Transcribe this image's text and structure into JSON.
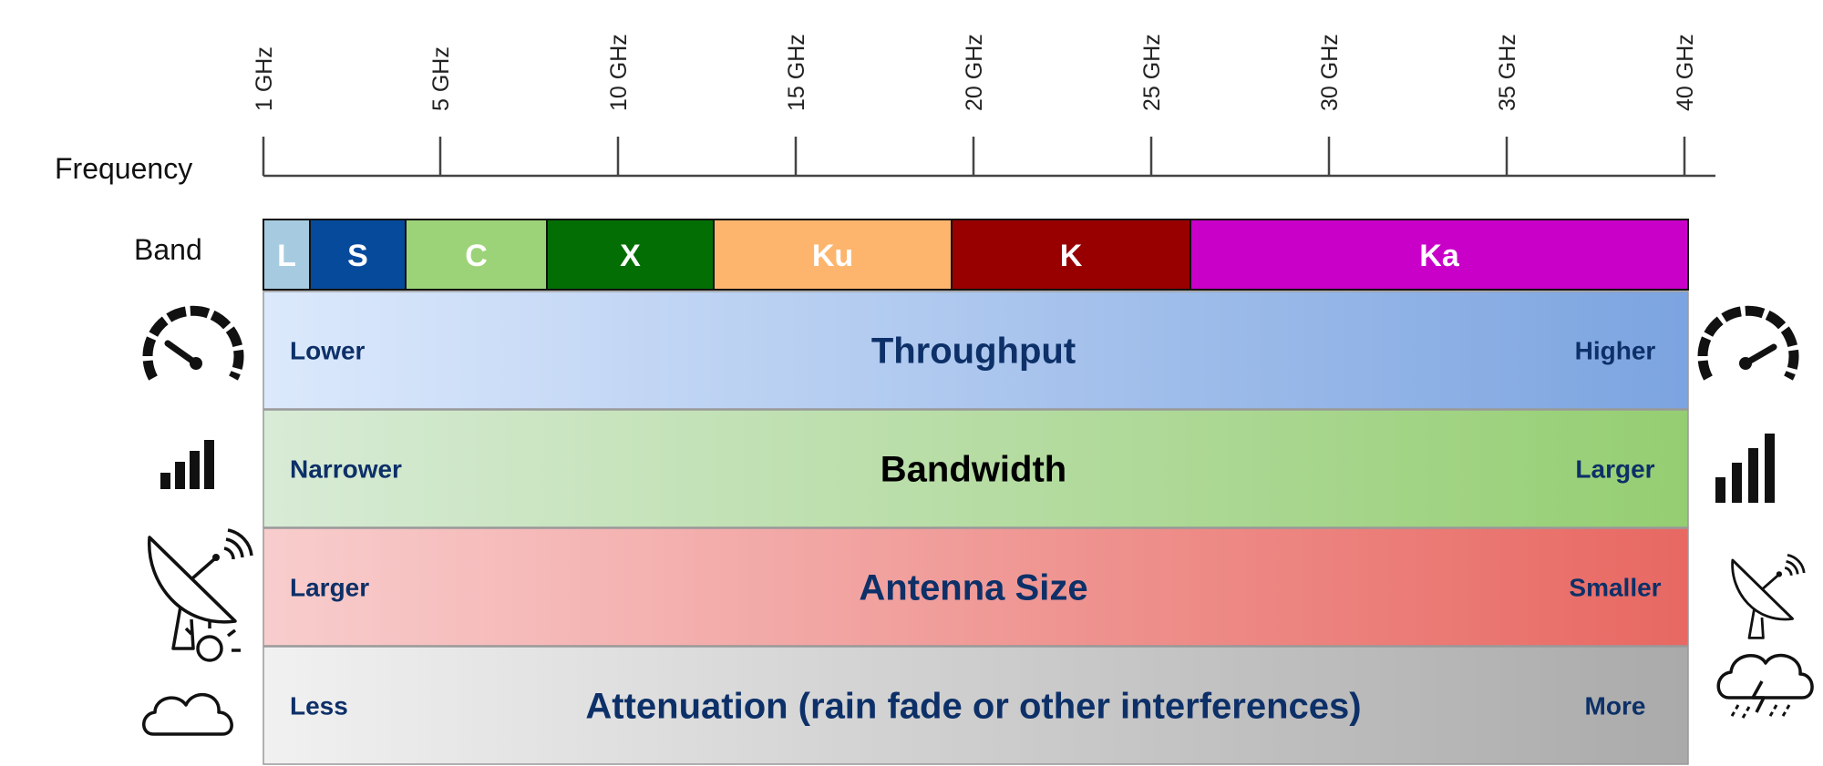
{
  "axis": {
    "label": "Frequency",
    "ticks": [
      "1 GHz",
      "5 GHz",
      "10 GHz",
      "15 GHz",
      "20 GHz",
      "25 GHz",
      "30 GHz",
      "35 GHz",
      "40 GHz"
    ]
  },
  "band_row": {
    "label": "Band",
    "bands": [
      {
        "name": "L",
        "color": "#a6cbe0"
      },
      {
        "name": "S",
        "color": "#064a9c"
      },
      {
        "name": "C",
        "color": "#9cd378"
      },
      {
        "name": "X",
        "color": "#036e04"
      },
      {
        "name": "Ku",
        "color": "#fdb56d"
      },
      {
        "name": "K",
        "color": "#980000"
      },
      {
        "name": "Ka",
        "color": "#c800c8"
      }
    ]
  },
  "bars": [
    {
      "title": "Throughput",
      "left": "Lower",
      "right": "Higher",
      "gradient": [
        "#dce9fc",
        "#7ca4e0"
      ],
      "text_color": "#0d3068",
      "title_color": "#0d3068",
      "left_icon": "speedometer-icon",
      "right_icon": "speedometer-icon"
    },
    {
      "title": "Bandwidth",
      "left": "Narrower",
      "right": "Larger",
      "gradient": [
        "#d8ebd6",
        "#95ce72"
      ],
      "text_color": "#0d3068",
      "title_color": "#000000",
      "left_icon": "signal-strength-icon",
      "right_icon": "signal-strength-icon"
    },
    {
      "title": "Antenna Size",
      "left": "Larger",
      "right": "Smaller",
      "gradient": [
        "#f8cdcd",
        "#e86862"
      ],
      "text_color": "#0d3068",
      "title_color": "#0d3068",
      "left_icon": "satellite-dish-icon",
      "right_icon": "satellite-dish-icon"
    },
    {
      "title": "Attenuation (rain fade or other interferences)",
      "left": "Less",
      "right": "More",
      "gradient": [
        "#f1f1f1",
        "#aaaaaa"
      ],
      "text_color": "#0d3068",
      "title_color": "#0d3068",
      "left_icon": "partly-sunny-icon",
      "right_icon": "storm-cloud-icon"
    }
  ]
}
